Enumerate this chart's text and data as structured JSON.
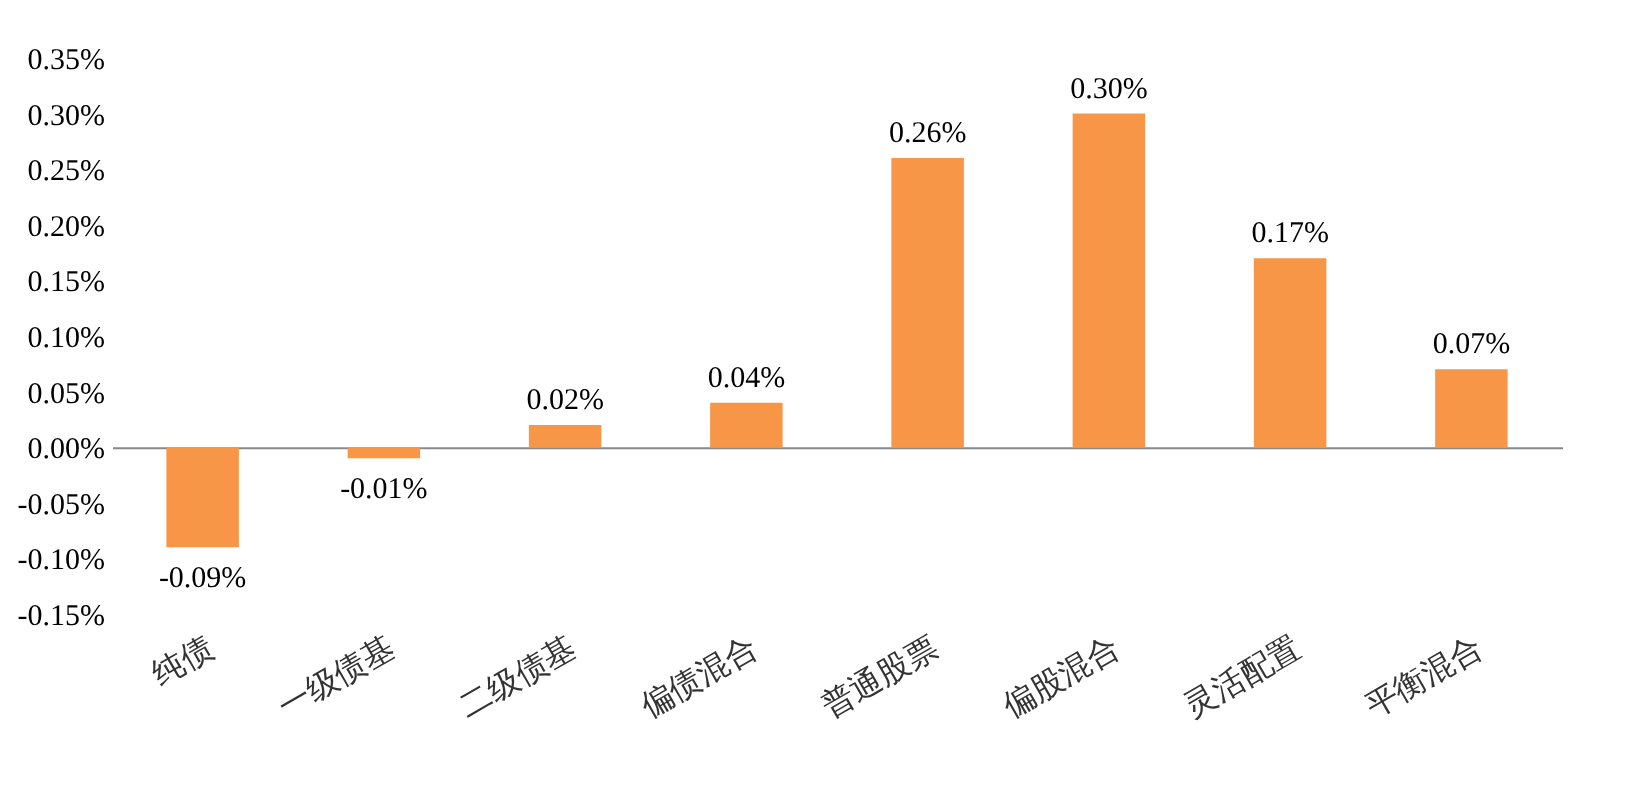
{
  "chart_data": {
    "type": "bar",
    "categories": [
      "纯债",
      "一级债基",
      "二级债基",
      "偏债混合",
      "普通股票",
      "偏股混合",
      "灵活配置",
      "平衡混合"
    ],
    "values": [
      -0.09,
      -0.01,
      0.02,
      0.04,
      0.26,
      0.3,
      0.17,
      0.07
    ],
    "value_labels": [
      "-0.09%",
      "-0.01%",
      "0.02%",
      "0.04%",
      "0.26%",
      "0.30%",
      "0.17%",
      "0.07%"
    ],
    "color": "#f79646",
    "ylim": [
      -0.15,
      0.35
    ],
    "yticks": [
      {
        "value": -0.15,
        "label": "-0.15%"
      },
      {
        "value": -0.1,
        "label": "-0.10%"
      },
      {
        "value": -0.05,
        "label": "-0.05%"
      },
      {
        "value": 0,
        "label": "0.00%"
      },
      {
        "value": 0.05,
        "label": "0.05%"
      },
      {
        "value": 0.1,
        "label": "0.10%"
      },
      {
        "value": 0.15,
        "label": "0.15%"
      },
      {
        "value": 0.2,
        "label": "0.20%"
      },
      {
        "value": 0.25,
        "label": "0.25%"
      },
      {
        "value": 0.3,
        "label": "0.30%"
      },
      {
        "value": 0.35,
        "label": "0.35%"
      }
    ],
    "ref_lines": [
      {
        "axis": "y",
        "value": 0,
        "color": "#888888"
      }
    ]
  }
}
